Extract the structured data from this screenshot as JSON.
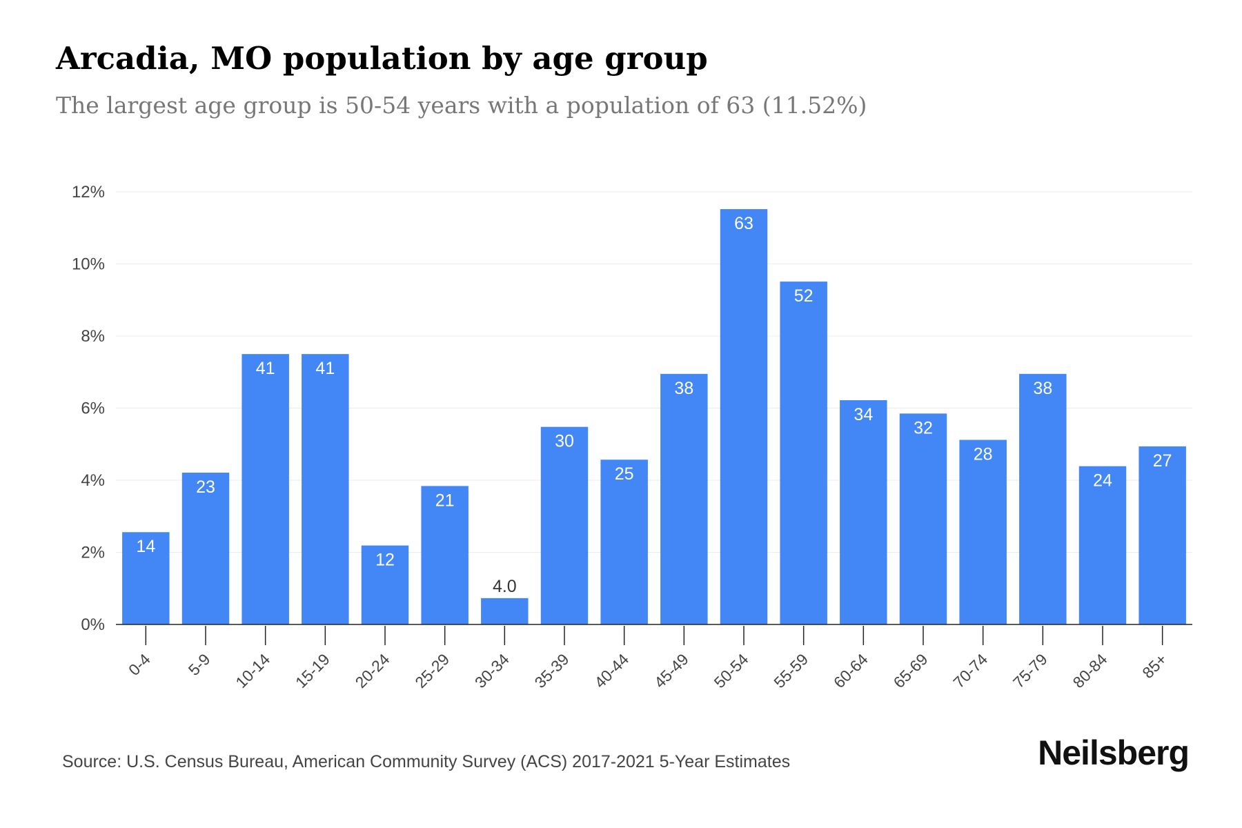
{
  "header": {
    "title": "Arcadia, MO population by age group",
    "subtitle": "The largest age group is 50-54 years with a population of 63 (11.52%)"
  },
  "chart_data": {
    "type": "bar",
    "categories": [
      "0-4",
      "5-9",
      "10-14",
      "15-19",
      "20-24",
      "25-29",
      "30-34",
      "35-39",
      "40-44",
      "45-49",
      "50-54",
      "55-59",
      "60-64",
      "65-69",
      "70-74",
      "75-79",
      "80-84",
      "85+"
    ],
    "values": [
      2.56,
      4.21,
      7.5,
      7.5,
      2.19,
      3.84,
      0.73,
      5.48,
      4.57,
      6.95,
      11.52,
      9.51,
      6.22,
      5.85,
      5.12,
      6.95,
      4.39,
      4.94
    ],
    "data_labels": [
      "14",
      "23",
      "41",
      "41",
      "12",
      "21",
      "4.0",
      "30",
      "25",
      "38",
      "63",
      "52",
      "34",
      "32",
      "28",
      "38",
      "24",
      "27"
    ],
    "yticks": [
      "0%",
      "2%",
      "4%",
      "6%",
      "8%",
      "10%",
      "12%"
    ],
    "ylim": [
      0,
      12
    ],
    "grid": true,
    "bar_color": "#4287f5"
  },
  "footer": {
    "source": "Source: U.S. Census Bureau, American Community Survey (ACS) 2017-2021 5-Year Estimates",
    "brand": "Neilsberg"
  }
}
